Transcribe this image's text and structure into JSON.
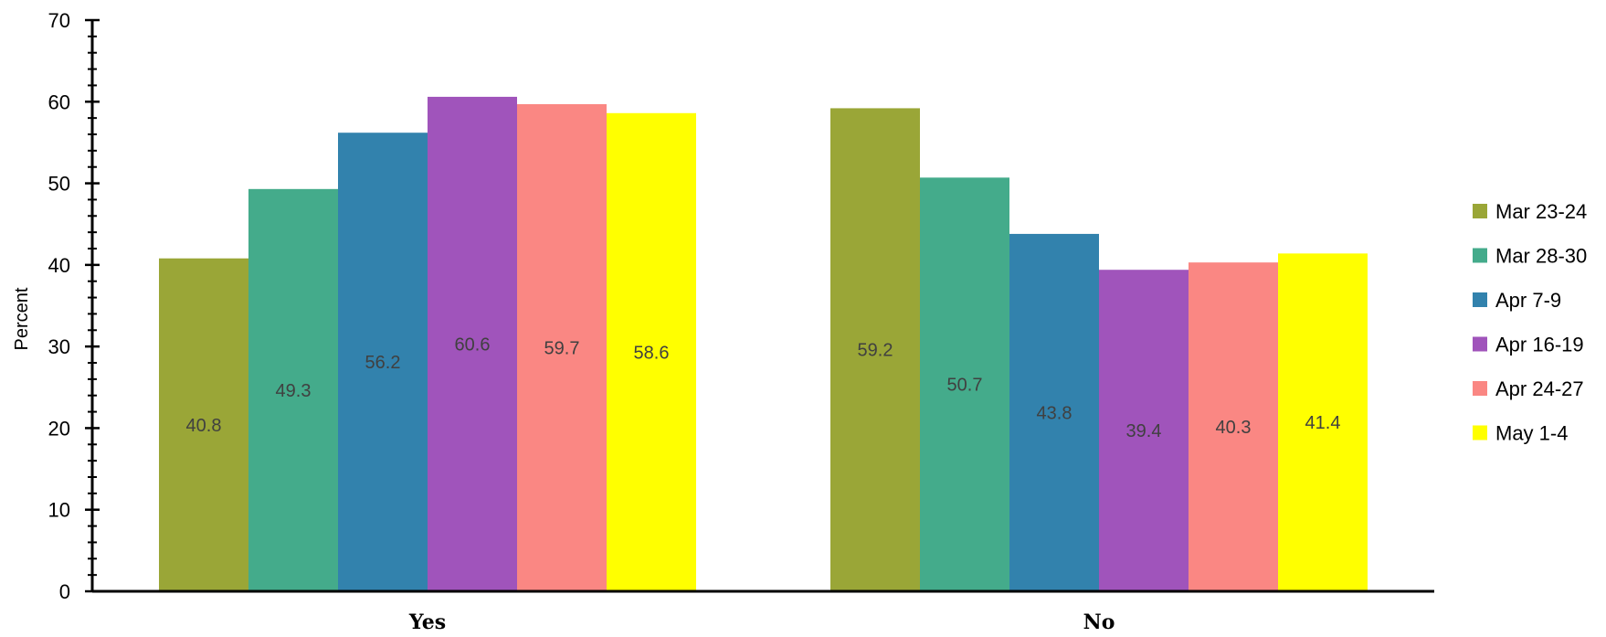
{
  "chart_data": {
    "type": "bar",
    "title": "",
    "xlabel": "",
    "ylabel": "Percent",
    "ylim": [
      0,
      70
    ],
    "ytick_step": 10,
    "yticks": [
      "0",
      "10",
      "20",
      "30",
      "40",
      "50",
      "60",
      "70"
    ],
    "categories": [
      "Yes",
      "No"
    ],
    "grid": false,
    "legend_position": "right",
    "series": [
      {
        "name": "Mar 23-24",
        "color": "#9aa637",
        "values": [
          40.8,
          59.2
        ],
        "labels": [
          "40.8",
          "59.2"
        ]
      },
      {
        "name": "Mar 28-30",
        "color": "#44ab8b",
        "values": [
          49.3,
          50.7
        ],
        "labels": [
          "49.3",
          "50.7"
        ]
      },
      {
        "name": "Apr 7-9",
        "color": "#3282ad",
        "values": [
          56.2,
          43.8
        ],
        "labels": [
          "56.2",
          "43.8"
        ]
      },
      {
        "name": "Apr 16-19",
        "color": "#a054bb",
        "values": [
          60.6,
          39.4
        ],
        "labels": [
          "60.6",
          "39.4"
        ]
      },
      {
        "name": "Apr 24-27",
        "color": "#fa8783",
        "values": [
          59.7,
          40.3
        ],
        "labels": [
          "59.7",
          "40.3"
        ]
      },
      {
        "name": "May 1-4",
        "color": "#ffff00",
        "values": [
          58.6,
          41.4
        ],
        "labels": [
          "58.6",
          "41.4"
        ]
      }
    ]
  }
}
